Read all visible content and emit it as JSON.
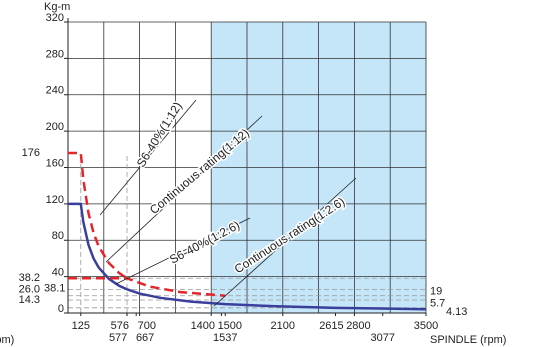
{
  "chart_data": {
    "type": "line",
    "y_label": "Kg-m",
    "x_label": "SPINDLE (rpm)",
    "x_label_left": "(rpm)",
    "xlim": [
      0,
      3500
    ],
    "ylim": [
      0,
      320
    ],
    "yticks": [
      0,
      40,
      80,
      120,
      160,
      200,
      240,
      280,
      320
    ],
    "xgrid": [
      0,
      350,
      700,
      1050,
      1400,
      1750,
      2100,
      2450,
      2800,
      3150,
      3500
    ],
    "grid": true,
    "shaded_xrange": [
      1400,
      3500
    ],
    "shade_color": "#c4e6f8",
    "xticks": [
      125,
      576,
      700,
      1400,
      1500,
      2100,
      2615,
      2800,
      3500
    ],
    "xticks_lower": [
      577,
      667,
      1537,
      3077
    ],
    "series": [
      {
        "name": "S6-40%(1:12)",
        "color": "#e3262c",
        "dashed": true,
        "x": [
          0,
          125,
          150,
          200,
          250,
          300,
          400,
          500,
          577
        ],
        "values": [
          176,
          176,
          146.7,
          110,
          88,
          73.3,
          55,
          44,
          38.1
        ]
      },
      {
        "name": "Continuous rating(1:12)",
        "color": "#3b3f9c",
        "dashed": false,
        "x": [
          0,
          125,
          150,
          200,
          250,
          300,
          400,
          500,
          577
        ],
        "values": [
          120,
          120,
          100,
          75,
          60,
          50,
          37.5,
          30,
          26.0
        ]
      },
      {
        "name": "S6-40%(1:2.6)",
        "color": "#e3262c",
        "dashed": true,
        "x": [
          0,
          577,
          800,
          1100,
          1537
        ],
        "values": [
          38.2,
          38.2,
          29,
          23,
          19
        ]
      },
      {
        "name": "Continuous rating(1:2.6)",
        "color": "#3b3f9c",
        "dashed": false,
        "x": [
          577,
          700,
          900,
          1200,
          1537,
          2000,
          2615,
          3500
        ],
        "values": [
          26.0,
          21.4,
          16.7,
          12.5,
          9.8,
          7.5,
          5.7,
          4.13
        ]
      }
    ],
    "left_labels": [
      {
        "value": 176,
        "label": "176"
      },
      {
        "value": 38.2,
        "label": "38.2"
      },
      {
        "value": 26,
        "label": "26.0"
      },
      {
        "value": 38.1,
        "label": "38.1"
      },
      {
        "value": 14.3,
        "label": "14.3"
      }
    ],
    "right_labels": [
      19,
      5.7,
      4.13
    ],
    "reference_h": [
      38.2,
      26,
      14.3,
      19,
      5.7
    ],
    "reference_v": [
      125,
      577
    ]
  }
}
